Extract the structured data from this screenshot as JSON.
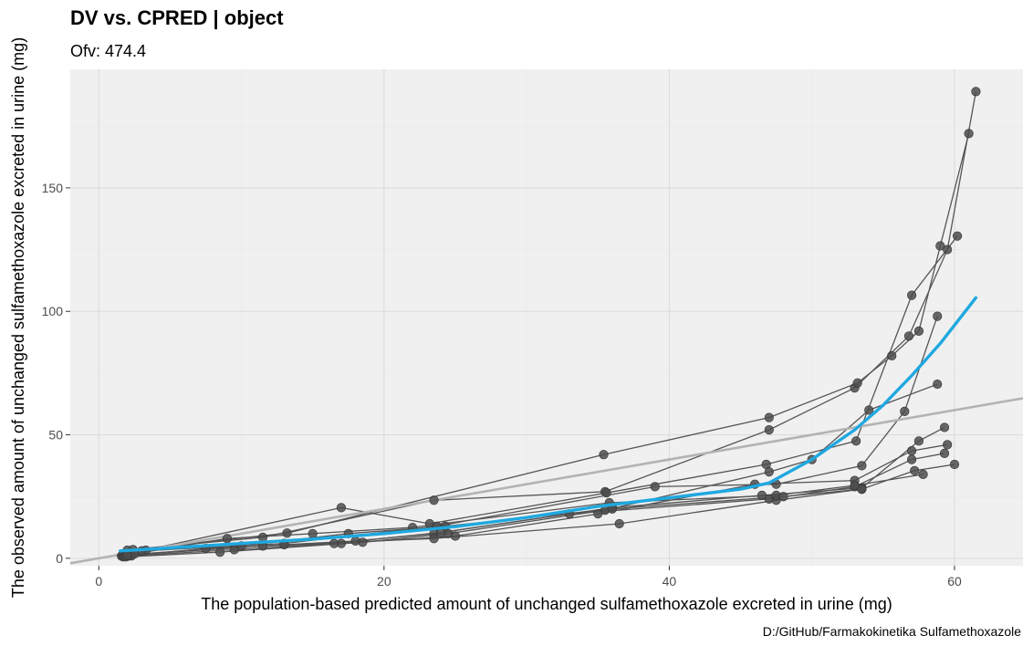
{
  "chart_data": {
    "type": "scatter",
    "title": "DV vs. CPRED | object",
    "subtitle": "Ofv: 474.4",
    "xlabel": "The population-based predicted amount of unchanged sulfamethoxazole excreted in urine (mg)",
    "ylabel": "The observed amount of unchanged sulfamethoxazole excreted in urine (mg)",
    "caption": "D:/GitHub/Farmakokinetika Sulfamethoxazole",
    "xlim": [
      -2.0,
      64.8
    ],
    "ylim": [
      -3.0,
      198
    ],
    "x_ticks": [
      0,
      20,
      40,
      60
    ],
    "y_ticks": [
      0,
      50,
      100,
      150
    ],
    "grid": true,
    "colors": {
      "panel": "#f0f0f0",
      "grid_major": "#dcdcdc",
      "grid_minor": "#e9e9e9",
      "points": "#4d4d4d",
      "lines": "#555555",
      "identity_line": "#b3b3b3",
      "smooth": "#1fa8e0"
    },
    "identity_line": {
      "slope": 1,
      "intercept": 0
    },
    "series": [
      {
        "points": [
          [
            1.6,
            1.0
          ],
          [
            2.0,
            3.3
          ],
          [
            11.5,
            8.5
          ],
          [
            23.5,
            23.5
          ],
          [
            35.5,
            27.0
          ],
          [
            47.0,
            52.0
          ],
          [
            53.0,
            69.0
          ],
          [
            56.8,
            90.0
          ],
          [
            59.5,
            125.0
          ],
          [
            61.5,
            189.0
          ]
        ]
      },
      {
        "points": [
          [
            1.6,
            0.9
          ],
          [
            2.4,
            3.5
          ],
          [
            13.2,
            10.2
          ],
          [
            35.4,
            42.0
          ],
          [
            47.0,
            57.0
          ],
          [
            53.2,
            71.0
          ],
          [
            55.6,
            82.0
          ],
          [
            57.5,
            92.0
          ],
          [
            59.0,
            126.5
          ],
          [
            61.0,
            172.0
          ]
        ]
      },
      {
        "points": [
          [
            1.7,
            0.6
          ],
          [
            3.3,
            3.3
          ],
          [
            17.0,
            20.5
          ],
          [
            23.2,
            14.0
          ],
          [
            35.6,
            26.5
          ],
          [
            46.8,
            38.0
          ],
          [
            53.1,
            47.5
          ],
          [
            57.0,
            106.5
          ],
          [
            60.2,
            130.5
          ]
        ]
      },
      {
        "points": [
          [
            1.8,
            1.0
          ],
          [
            3.0,
            3.0
          ],
          [
            13.0,
            6.0
          ],
          [
            23.7,
            13.0
          ],
          [
            39.0,
            29.0
          ],
          [
            47.5,
            30.0
          ],
          [
            53.5,
            37.5
          ],
          [
            56.5,
            59.5
          ],
          [
            58.8,
            98.0
          ]
        ]
      },
      {
        "points": [
          [
            1.9,
            0.6
          ],
          [
            8.5,
            2.5
          ],
          [
            18.5,
            6.5
          ],
          [
            24.5,
            10.0
          ],
          [
            35.5,
            19.5
          ],
          [
            47.0,
            35.0
          ],
          [
            50.0,
            40.0
          ],
          [
            54.0,
            60.0
          ],
          [
            58.8,
            70.5
          ]
        ]
      },
      {
        "points": [
          [
            2.1,
            0.9
          ],
          [
            9.5,
            3.5
          ],
          [
            17.0,
            6.0
          ],
          [
            25.0,
            9.0
          ],
          [
            35.0,
            18.0
          ],
          [
            46.0,
            30.0
          ],
          [
            53.0,
            31.5
          ],
          [
            57.0,
            43.5
          ],
          [
            59.5,
            46.0
          ]
        ]
      },
      {
        "points": [
          [
            2.2,
            1.3
          ],
          [
            11.5,
            5.0
          ],
          [
            18.0,
            7.0
          ],
          [
            23.5,
            10.0
          ],
          [
            36.0,
            20.5
          ],
          [
            46.5,
            25.5
          ],
          [
            53.5,
            28.5
          ],
          [
            57.5,
            47.5
          ],
          [
            59.3,
            53.0
          ]
        ]
      },
      {
        "points": [
          [
            2.3,
            1.0
          ],
          [
            7.5,
            4.0
          ],
          [
            16.5,
            6.0
          ],
          [
            24.0,
            10.5
          ],
          [
            33.0,
            18.0
          ],
          [
            47.0,
            24.0
          ],
          [
            53.0,
            29.0
          ],
          [
            57.0,
            40.0
          ],
          [
            59.3,
            42.5
          ]
        ]
      },
      {
        "points": [
          [
            2.0,
            1.5
          ],
          [
            13.0,
            5.5
          ],
          [
            23.5,
            8.0
          ],
          [
            36.5,
            14.0
          ],
          [
            47.5,
            23.5
          ],
          [
            53.5,
            28.0
          ],
          [
            57.2,
            35.5
          ],
          [
            60.0,
            38.0
          ]
        ]
      },
      {
        "points": [
          [
            2.5,
            1.8
          ],
          [
            9.0,
            8.0
          ],
          [
            15.0,
            10.0
          ],
          [
            22.0,
            12.5
          ],
          [
            35.8,
            22.5
          ],
          [
            47.5,
            25.5
          ],
          [
            53.0,
            29.5
          ],
          [
            57.8,
            34.0
          ]
        ]
      },
      {
        "points": [
          [
            2.0,
            1.2
          ],
          [
            10.0,
            5.0
          ],
          [
            17.5,
            10.0
          ],
          [
            24.3,
            13.0
          ],
          [
            36.0,
            20.0
          ],
          [
            48.0,
            25.0
          ],
          [
            53.5,
            28.0
          ]
        ]
      }
    ],
    "smooth_line": [
      [
        1.5,
        3.0
      ],
      [
        5,
        4.2
      ],
      [
        10,
        6.0
      ],
      [
        15,
        7.8
      ],
      [
        20,
        10.0
      ],
      [
        25,
        12.8
      ],
      [
        30,
        16.5
      ],
      [
        35,
        21.0
      ],
      [
        40,
        24.5
      ],
      [
        45,
        28.0
      ],
      [
        47,
        30.5
      ],
      [
        50,
        40.0
      ],
      [
        53,
        52.0
      ],
      [
        55,
        62.0
      ],
      [
        57,
        74.0
      ],
      [
        59,
        87.0
      ],
      [
        61.5,
        105.5
      ]
    ]
  }
}
